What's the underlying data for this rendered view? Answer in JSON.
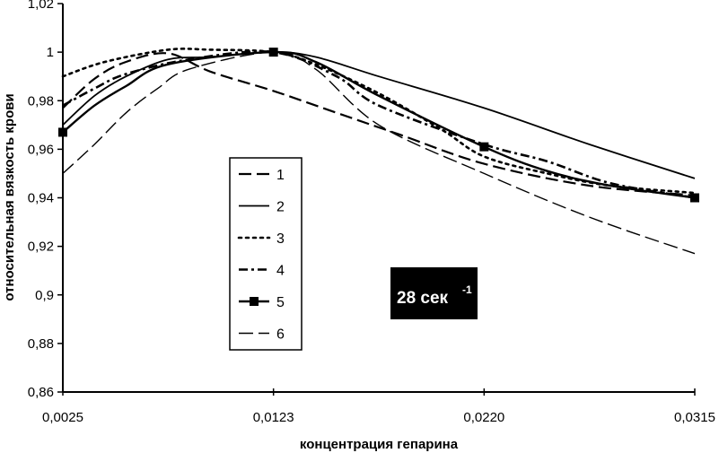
{
  "chart_data": {
    "type": "line",
    "xlabel": "концентрация гепарина",
    "ylabel": "относительная вязкость крови",
    "x_tick_labels": [
      "0,0025",
      "0,0123",
      "0,0220",
      "0,0315"
    ],
    "y_tick_labels": [
      "0,86",
      "0,88",
      "0,9",
      "0,92",
      "0,94",
      "0,96",
      "0,98",
      "1",
      "1,02"
    ],
    "ylim": [
      0.86,
      1.02
    ],
    "grid": false,
    "legend_position": "center-left",
    "shear_rate_label": "28 сек",
    "shear_rate_superscript": "-1",
    "series": [
      {
        "name": "1",
        "style": "long-dash",
        "color": "#000000",
        "points": [
          [
            0,
            0.977
          ],
          [
            0.15,
            0.989
          ],
          [
            0.3,
            0.996
          ],
          [
            0.5,
            0.9995
          ],
          [
            0.7,
            0.992
          ],
          [
            1.0,
            0.984
          ],
          [
            1.3,
            0.975
          ],
          [
            1.6,
            0.966
          ],
          [
            2.0,
            0.954
          ],
          [
            2.5,
            0.945
          ],
          [
            3,
            0.941
          ]
        ]
      },
      {
        "name": "2",
        "style": "solid",
        "color": "#000000",
        "points": [
          [
            0,
            0.97
          ],
          [
            0.15,
            0.982
          ],
          [
            0.3,
            0.99
          ],
          [
            0.5,
            0.997
          ],
          [
            0.7,
            0.998
          ],
          [
            1.0,
            1.0
          ],
          [
            1.2,
            0.998
          ],
          [
            1.5,
            0.99
          ],
          [
            2.0,
            0.977
          ],
          [
            2.5,
            0.962
          ],
          [
            3,
            0.948
          ]
        ]
      },
      {
        "name": "3",
        "style": "dotted",
        "color": "#000000",
        "points": [
          [
            0,
            0.99
          ],
          [
            0.2,
            0.996
          ],
          [
            0.5,
            1.001
          ],
          [
            0.7,
            1.001
          ],
          [
            1.0,
            1.0
          ],
          [
            1.2,
            0.995
          ],
          [
            1.5,
            0.983
          ],
          [
            1.8,
            0.968
          ],
          [
            2.0,
            0.957
          ],
          [
            2.3,
            0.95
          ],
          [
            2.6,
            0.945
          ],
          [
            3,
            0.942
          ]
        ]
      },
      {
        "name": "4",
        "style": "dash-dot",
        "color": "#000000",
        "points": [
          [
            0,
            0.978
          ],
          [
            0.15,
            0.985
          ],
          [
            0.3,
            0.991
          ],
          [
            0.6,
            0.997
          ],
          [
            1.0,
            1.0
          ],
          [
            1.3,
            0.99
          ],
          [
            1.5,
            0.978
          ],
          [
            2.0,
            0.962
          ],
          [
            2.3,
            0.955
          ],
          [
            2.6,
            0.946
          ],
          [
            3,
            0.94
          ]
        ]
      },
      {
        "name": "5",
        "style": "solid-square",
        "color": "#000000",
        "points": [
          [
            0,
            0.967
          ],
          [
            0.15,
            0.978
          ],
          [
            0.3,
            0.986
          ],
          [
            0.5,
            0.995
          ],
          [
            1.0,
            1.0
          ],
          [
            1.2,
            0.996
          ],
          [
            1.5,
            0.982
          ],
          [
            2.0,
            0.961
          ],
          [
            2.3,
            0.951
          ],
          [
            2.6,
            0.945
          ],
          [
            3,
            0.94
          ]
        ],
        "markers": [
          0,
          4,
          7,
          10
        ]
      },
      {
        "name": "6",
        "style": "long-dash-open",
        "color": "#000000",
        "points": [
          [
            0,
            0.95
          ],
          [
            0.15,
            0.962
          ],
          [
            0.3,
            0.975
          ],
          [
            0.45,
            0.985
          ],
          [
            0.6,
            0.993
          ],
          [
            1.0,
            1.0
          ],
          [
            1.2,
            0.993
          ],
          [
            1.5,
            0.97
          ],
          [
            2.0,
            0.95
          ],
          [
            2.5,
            0.932
          ],
          [
            3,
            0.917
          ]
        ]
      }
    ]
  }
}
